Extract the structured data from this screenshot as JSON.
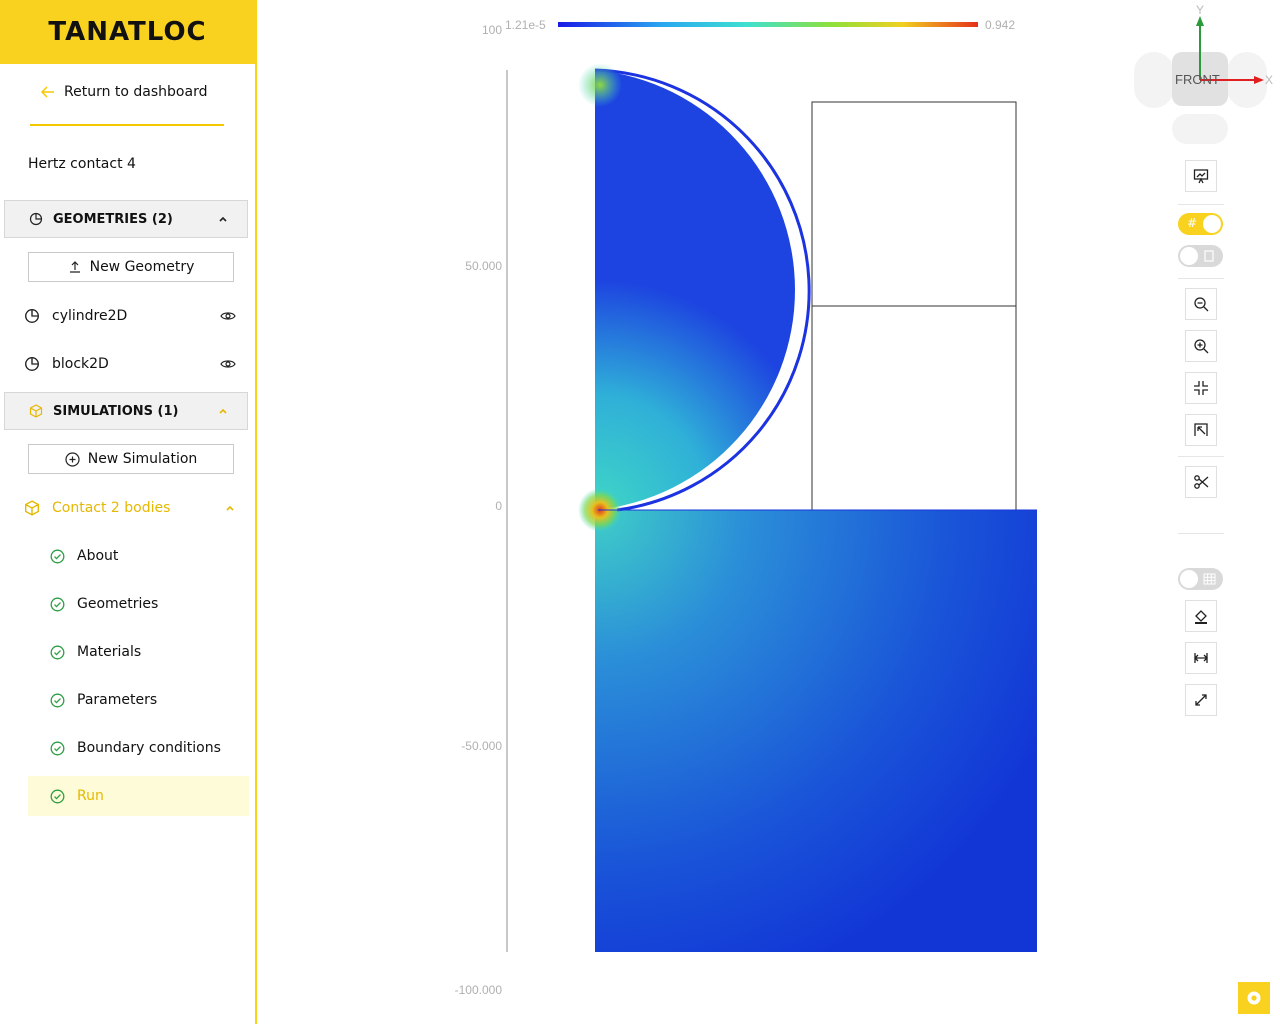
{
  "brand": "TANATLOC",
  "nav": {
    "return_label": "Return to dashboard"
  },
  "project": {
    "name": "Hertz contact 4"
  },
  "geometries": {
    "header": "GEOMETRIES (2)",
    "new_button": "New Geometry",
    "items": [
      {
        "label": "cylindre2D"
      },
      {
        "label": "block2D"
      }
    ]
  },
  "simulations": {
    "header": "SIMULATIONS (1)",
    "new_button": "New Simulation",
    "active": {
      "label": "Contact 2 bodies",
      "steps": [
        {
          "label": "About"
        },
        {
          "label": "Geometries"
        },
        {
          "label": "Materials"
        },
        {
          "label": "Parameters"
        },
        {
          "label": "Boundary conditions"
        },
        {
          "label": "Run"
        }
      ]
    }
  },
  "colorbar": {
    "min": "1.21e-5",
    "max": "0.942"
  },
  "axes": {
    "y_ticks": [
      {
        "value": 100,
        "label": "100"
      },
      {
        "value": 50,
        "label": "50.000"
      },
      {
        "value": 0,
        "label": "0"
      },
      {
        "value": -50,
        "label": "-50.000"
      },
      {
        "value": -100,
        "label": "-100.000"
      }
    ]
  },
  "orientation": {
    "view": "FRONT",
    "x_axis": "X",
    "y_axis": "Y"
  },
  "colors": {
    "accent": "#f9d21f",
    "active_text": "#e6b800",
    "check": "#2e9e44"
  },
  "toolbar": [
    "presentation-icon",
    "grid-toggle",
    "document-toggle",
    "zoom-out-icon",
    "zoom-in-icon",
    "fit-icon",
    "select-icon",
    "cut-icon",
    "mesh-toggle",
    "color-fill-icon",
    "measure-icon",
    "expand-icon"
  ]
}
